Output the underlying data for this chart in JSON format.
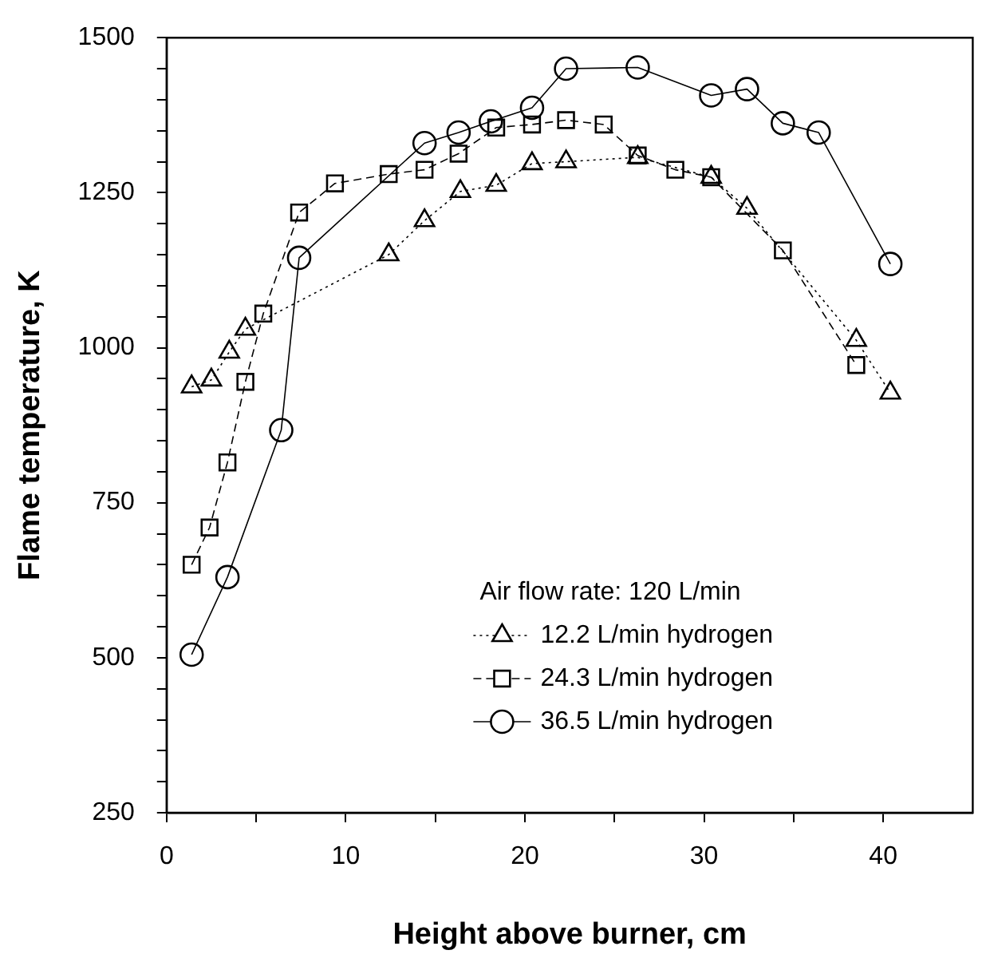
{
  "chart_data": {
    "type": "line",
    "xlabel": "Height above burner, cm",
    "ylabel": "Flame temperature, K",
    "legend_title": "Air flow rate: 120 L/min",
    "legend": "bottom right",
    "grid": false,
    "xlim": [
      0,
      45
    ],
    "ylim": [
      250,
      1500
    ],
    "xticks": [
      0,
      {
        "value": 5,
        "label": null
      },
      10,
      {
        "value": 15,
        "label": null
      },
      20,
      {
        "value": 25,
        "label": null
      },
      30,
      {
        "value": 35,
        "label": null
      },
      40
    ],
    "yticks": [
      250,
      {
        "value": 300,
        "label": null
      },
      {
        "value": 350,
        "label": null
      },
      {
        "value": 400,
        "label": null
      },
      {
        "value": 450,
        "label": null
      },
      500,
      {
        "value": 550,
        "label": null
      },
      {
        "value": 600,
        "label": null
      },
      {
        "value": 650,
        "label": null
      },
      {
        "value": 700,
        "label": null
      },
      750,
      {
        "value": 800,
        "label": null
      },
      {
        "value": 850,
        "label": null
      },
      {
        "value": 900,
        "label": null
      },
      {
        "value": 950,
        "label": null
      },
      1000,
      {
        "value": 1050,
        "label": null
      },
      {
        "value": 1100,
        "label": null
      },
      {
        "value": 1150,
        "label": null
      },
      {
        "value": 1200,
        "label": null
      },
      1250,
      {
        "value": 1300,
        "label": null
      },
      {
        "value": 1350,
        "label": null
      },
      {
        "value": 1400,
        "label": null
      },
      {
        "value": 1450,
        "label": null
      },
      1500
    ],
    "series": [
      {
        "name": "12.2 L/min hydrogen",
        "color": "#000000",
        "marker": "triangle",
        "line_style": "dotted",
        "x": [
          1.4,
          2.5,
          3.5,
          4.4,
          12.4,
          14.4,
          16.4,
          18.4,
          20.4,
          22.3,
          26.3,
          30.4,
          32.4,
          38.5,
          40.4
        ],
        "values": [
          937,
          948,
          993,
          1030,
          1150,
          1205,
          1252,
          1262,
          1297,
          1300,
          1307,
          1275,
          1225,
          1012,
          927
        ]
      },
      {
        "name": "24.3 L/min hydrogen",
        "color": "#000000",
        "marker": "square",
        "line_style": "dashed",
        "x": [
          1.4,
          2.4,
          3.4,
          4.4,
          5.4,
          7.4,
          9.4,
          12.4,
          14.4,
          16.3,
          18.4,
          20.4,
          22.3,
          24.4,
          26.3,
          28.4,
          30.4,
          34.4,
          38.5
        ],
        "values": [
          650,
          710,
          815,
          945,
          1055,
          1218,
          1265,
          1280,
          1287,
          1313,
          1355,
          1360,
          1367,
          1360,
          1310,
          1287,
          1275,
          1157,
          972
        ]
      },
      {
        "name": "36.5 L/min hydrogen",
        "color": "#000000",
        "marker": "circle",
        "line_style": "solid",
        "x": [
          1.4,
          3.4,
          6.4,
          7.4,
          14.4,
          16.3,
          18.1,
          20.4,
          22.3,
          26.3,
          30.4,
          32.4,
          34.4,
          36.4,
          40.4
        ],
        "values": [
          505,
          630,
          867,
          1145,
          1330,
          1347,
          1365,
          1387,
          1450,
          1452,
          1407,
          1417,
          1362,
          1347,
          1135
        ]
      }
    ]
  }
}
